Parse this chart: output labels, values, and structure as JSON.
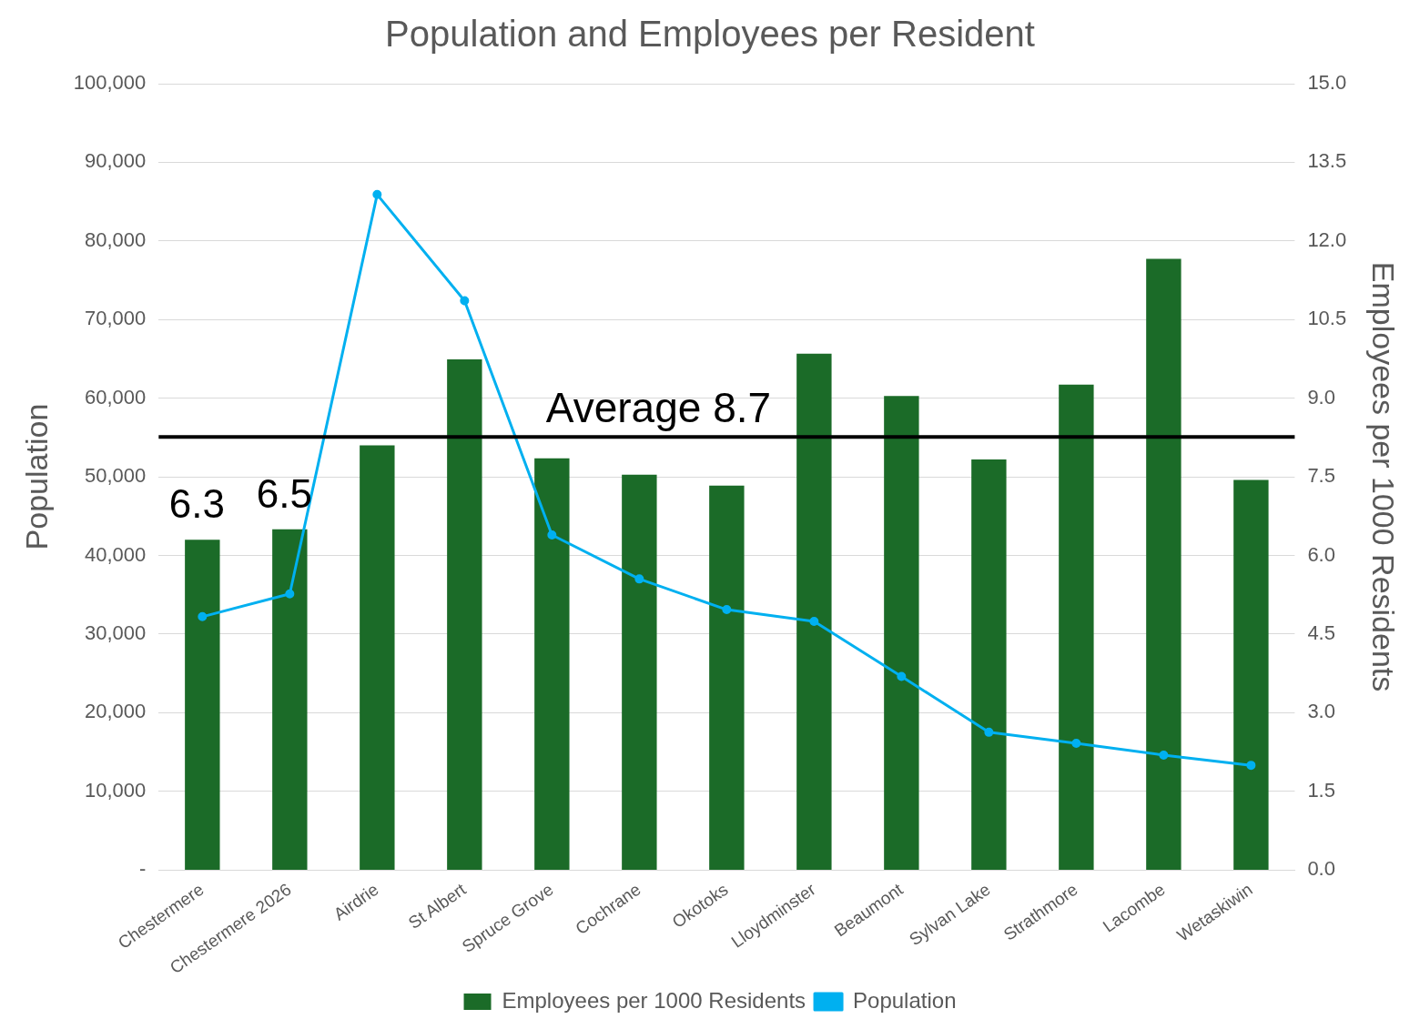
{
  "chart_data": {
    "type": "bar",
    "title": "Population and Employees per Resident",
    "ylabel": "Population",
    "y2label": "Employees per 1000 Residents",
    "categories": [
      "Chestermere",
      "Chestermere 2026",
      "Airdrie",
      "St Albert",
      "Spruce Grove",
      "Cochrane",
      "Okotoks",
      "Lloydminster",
      "Beaumont",
      "Sylvan Lake",
      "Strathmore",
      "Lacombe",
      "Wetaskiwin"
    ],
    "series": [
      {
        "name": "Employees per 1000 Residents",
        "axis": "y2",
        "color": "#1b6b28",
        "values": [
          6.3,
          6.5,
          8.1,
          9.74,
          7.85,
          7.54,
          7.33,
          9.85,
          9.04,
          7.83,
          9.26,
          11.66,
          7.44
        ],
        "value_labels": [
          "6.3",
          "6.5",
          null,
          null,
          null,
          null,
          null,
          null,
          null,
          null,
          null,
          null,
          null
        ]
      },
      {
        "name": "Population",
        "type": "line",
        "axis": "y",
        "color": "#00b0f0",
        "values": [
          32200,
          35100,
          85900,
          72400,
          42600,
          37000,
          33100,
          31600,
          24600,
          17500,
          16100,
          14600,
          13300
        ]
      }
    ],
    "ylim": [
      0,
      100000
    ],
    "yticks": [
      {
        "value": 0,
        "label": "-"
      },
      {
        "value": 10000,
        "label": "10,000"
      },
      {
        "value": 20000,
        "label": "20,000"
      },
      {
        "value": 30000,
        "label": "30,000"
      },
      {
        "value": 40000,
        "label": "40,000"
      },
      {
        "value": 50000,
        "label": "50,000"
      },
      {
        "value": 60000,
        "label": "60,000"
      },
      {
        "value": 70000,
        "label": "70,000"
      },
      {
        "value": 80000,
        "label": "80,000"
      },
      {
        "value": 90000,
        "label": "90,000"
      },
      {
        "value": 100000,
        "label": "100,000"
      }
    ],
    "y2lim": [
      0,
      15
    ],
    "y2ticks": [
      {
        "value": 0,
        "label": "0.0"
      },
      1.5,
      {
        "value": 3,
        "label": "3.0"
      },
      4.5,
      {
        "value": 6,
        "label": "6.0"
      },
      7.5,
      {
        "value": 9,
        "label": "9.0"
      },
      10.5,
      {
        "value": 12,
        "label": "12.0"
      },
      13.5,
      {
        "value": 15,
        "label": "15.0"
      }
    ],
    "ref_lines": [
      {
        "axis": "y2",
        "value": 8.26,
        "label": "Average 8.7",
        "color": "#000000",
        "line_style": "solid"
      }
    ],
    "grid": "y",
    "legend": "bottom",
    "marker": "circle",
    "line_style": "solid"
  }
}
